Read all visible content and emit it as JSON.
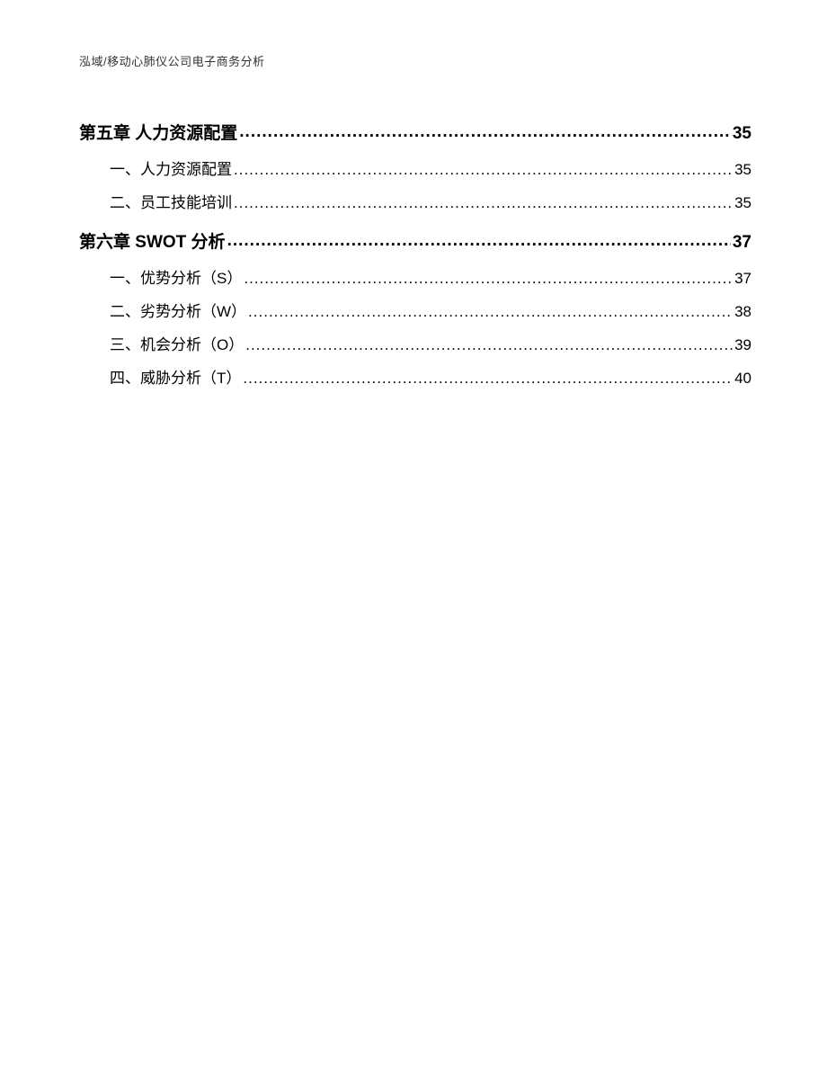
{
  "header": {
    "text": "泓域/移动心肺仪公司电子商务分析"
  },
  "toc": {
    "dots": "......................................................................................................................................................................................................",
    "chapters": [
      {
        "title": "第五章 人力资源配置",
        "page": "35",
        "sections": [
          {
            "label": "一、人力资源配置",
            "page": "35"
          },
          {
            "label": "二、员工技能培训",
            "page": "35"
          }
        ]
      },
      {
        "title": "第六章 SWOT 分析",
        "page": "37",
        "sections": [
          {
            "label": "一、优势分析（S）",
            "page": "37"
          },
          {
            "label": "二、劣势分析（W）",
            "page": "38"
          },
          {
            "label": "三、机会分析（O）",
            "page": "39"
          },
          {
            "label": "四、威胁分析（T）",
            "page": "40"
          }
        ]
      }
    ]
  }
}
